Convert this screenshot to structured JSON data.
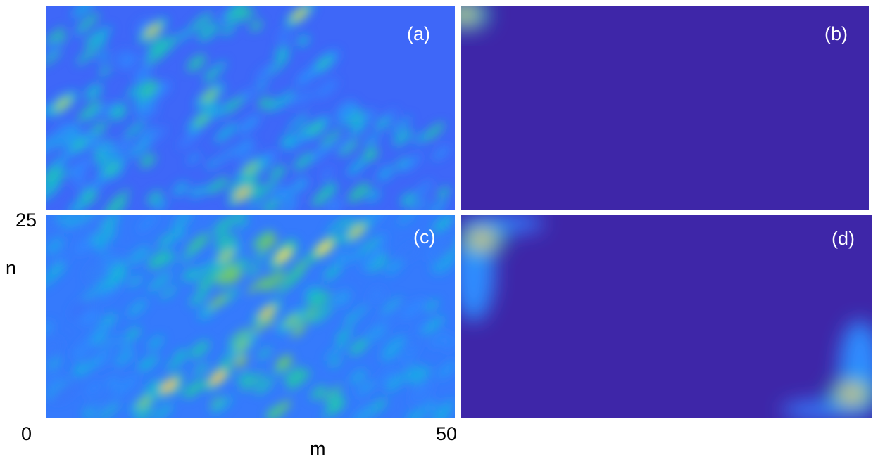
{
  "chart_data": [
    {
      "type": "heatmap",
      "panel_label": "(a)",
      "xlim": [
        0,
        50
      ],
      "ylim": [
        0,
        25
      ],
      "description_values": "intensity normalized 0-1; many scattered diagonal streaks over most of domain, upper-right corner empty",
      "hotspots": [
        {
          "m": 2,
          "n": 13,
          "v": 0.75
        },
        {
          "m": 13,
          "n": 22,
          "v": 0.8
        },
        {
          "m": 31,
          "n": 24,
          "v": 0.8
        },
        {
          "m": 20,
          "n": 14,
          "v": 0.7
        },
        {
          "m": 19,
          "n": 11,
          "v": 0.65
        },
        {
          "m": 25,
          "n": 5,
          "v": 0.7
        },
        {
          "m": 24,
          "n": 2,
          "v": 0.85
        },
        {
          "m": 8,
          "n": 5,
          "v": 0.6
        },
        {
          "m": 4,
          "n": 8,
          "v": 0.55
        },
        {
          "m": 33,
          "n": 10,
          "v": 0.6
        },
        {
          "m": 34,
          "n": 18,
          "v": 0.55
        }
      ]
    },
    {
      "type": "heatmap",
      "panel_label": "(b)",
      "xlim": [
        0,
        50
      ],
      "ylim": [
        0,
        25
      ],
      "hotspots": [
        {
          "m": 0.5,
          "n": 24,
          "v": 0.85
        }
      ]
    },
    {
      "type": "heatmap",
      "panel_label": "(c)",
      "xlim": [
        0,
        50
      ],
      "ylim": [
        0,
        25
      ],
      "description_values": "broad bright region in the centre spanning m approx 12-40",
      "hotspots": [
        {
          "m": 29,
          "n": 20,
          "v": 0.95
        },
        {
          "m": 34,
          "n": 21,
          "v": 0.95
        },
        {
          "m": 27,
          "n": 13,
          "v": 0.85
        },
        {
          "m": 21,
          "n": 5,
          "v": 0.9
        },
        {
          "m": 15,
          "n": 4,
          "v": 0.9
        },
        {
          "m": 12,
          "n": 2,
          "v": 0.7
        },
        {
          "m": 22,
          "n": 20,
          "v": 0.75
        },
        {
          "m": 38,
          "n": 23,
          "v": 0.8
        },
        {
          "m": 24,
          "n": 9,
          "v": 0.7
        },
        {
          "m": 30,
          "n": 12,
          "v": 0.7
        }
      ]
    },
    {
      "type": "heatmap",
      "panel_label": "(d)",
      "xlim": [
        0,
        50
      ],
      "ylim": [
        0,
        25
      ],
      "hotspots": [
        {
          "m": 2.5,
          "n": 22,
          "v": 0.9
        },
        {
          "m": 47.5,
          "n": 3,
          "v": 0.9
        }
      ]
    }
  ],
  "axes": {
    "xlabel": "m",
    "ylabel": "n",
    "x_tick_min": "0",
    "x_tick_max": "50",
    "y_tick_max": "25"
  },
  "colors": {
    "background": "#3e26a8",
    "colormap": "parula"
  }
}
